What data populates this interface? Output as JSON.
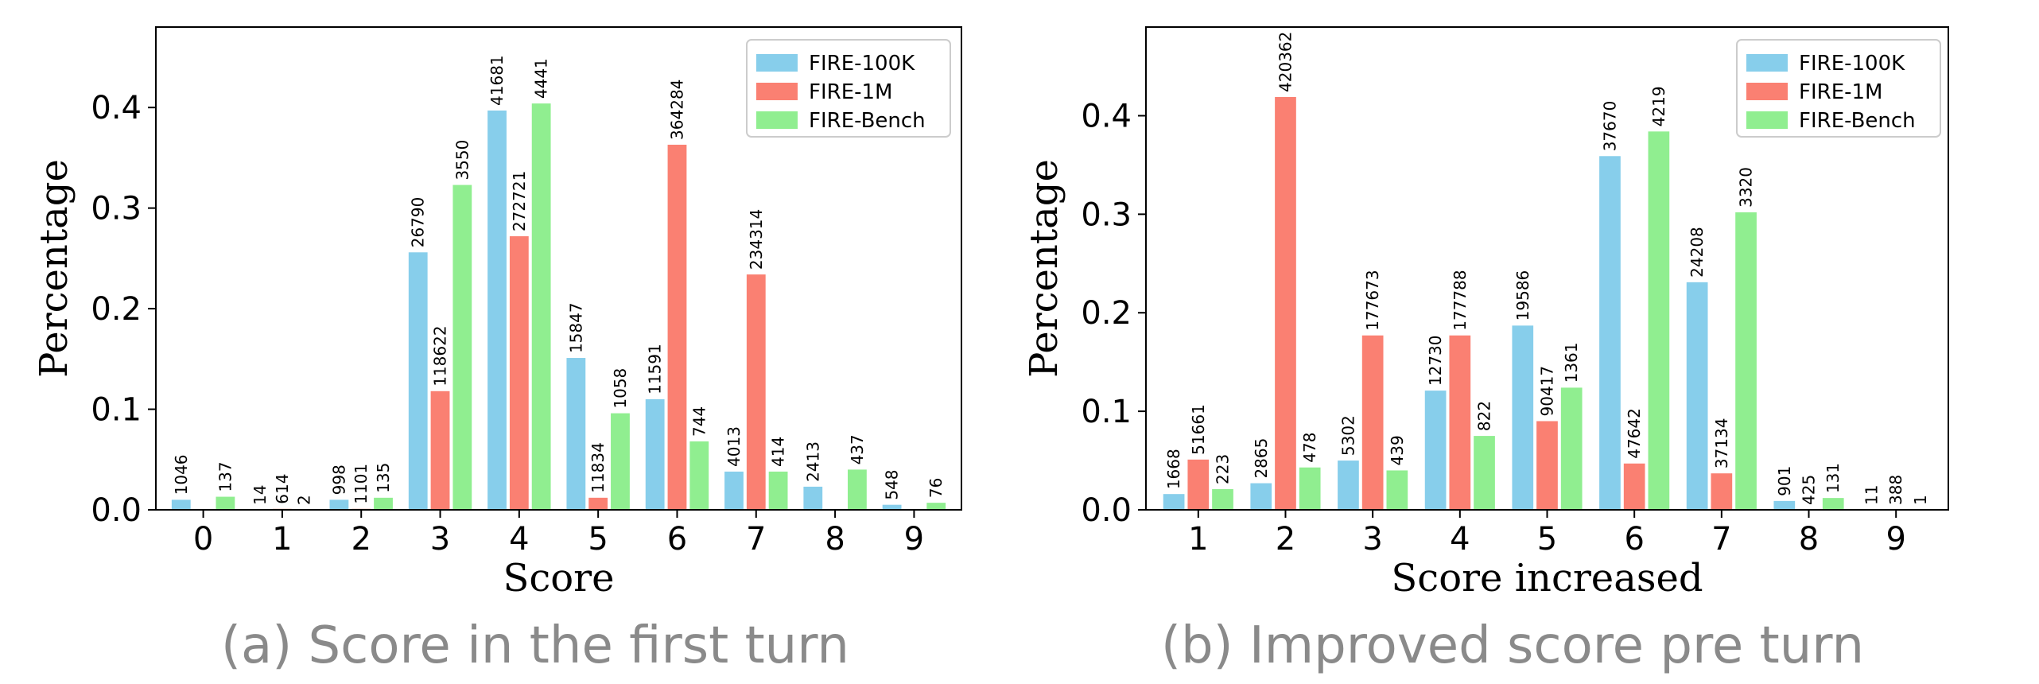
{
  "colors": {
    "FIRE-100K": "#87ceeb",
    "FIRE-1M": "#fa8072",
    "FIRE-Bench": "#90ee90"
  },
  "chart_data": [
    {
      "type": "bar",
      "caption": "(a) Score in the first turn",
      "xlabel": "Score",
      "ylabel": "Percentage",
      "categories": [
        "0",
        "1",
        "2",
        "3",
        "4",
        "5",
        "6",
        "7",
        "8",
        "9"
      ],
      "ylim": [
        0,
        0.48
      ],
      "yticks": [
        0.0,
        0.1,
        0.2,
        0.3,
        0.4
      ],
      "ytick_labels": [
        "0.0",
        "0.1",
        "0.2",
        "0.3",
        "0.4"
      ],
      "legend_position": "top-right",
      "series": [
        {
          "name": "FIRE-100K",
          "values": [
            0.01,
            0.0,
            0.01,
            0.256,
            0.397,
            0.151,
            0.11,
            0.038,
            0.023,
            0.005
          ],
          "labels": [
            "1046",
            "14",
            "998",
            "26790",
            "41681",
            "15847",
            "11591",
            "4013",
            "2413",
            "548"
          ]
        },
        {
          "name": "FIRE-1M",
          "values": [
            0.0,
            0.001,
            0.001,
            0.118,
            0.272,
            0.012,
            0.363,
            0.234,
            0.0,
            0.0
          ],
          "labels": [
            "",
            "614",
            "1101",
            "118622",
            "272721",
            "11834",
            "364284",
            "234314",
            "",
            ""
          ]
        },
        {
          "name": "FIRE-Bench",
          "values": [
            0.013,
            0.0,
            0.012,
            0.323,
            0.404,
            0.096,
            0.068,
            0.038,
            0.04,
            0.007
          ],
          "labels": [
            "137",
            "2",
            "135",
            "3550",
            "4441",
            "1058",
            "744",
            "414",
            "437",
            "76"
          ]
        }
      ]
    },
    {
      "type": "bar",
      "caption": "(b) Improved score pre turn",
      "xlabel": "Score increased",
      "ylabel": "Percentage",
      "categories": [
        "1",
        "2",
        "3",
        "4",
        "5",
        "6",
        "7",
        "8",
        "9"
      ],
      "ylim": [
        0,
        0.49
      ],
      "yticks": [
        0.0,
        0.1,
        0.2,
        0.3,
        0.4
      ],
      "ytick_labels": [
        "0.0",
        "0.1",
        "0.2",
        "0.3",
        "0.4"
      ],
      "legend_position": "top-right",
      "series": [
        {
          "name": "FIRE-100K",
          "values": [
            0.016,
            0.027,
            0.05,
            0.121,
            0.187,
            0.359,
            0.231,
            0.009,
            0.0
          ],
          "labels": [
            "1668",
            "2865",
            "5302",
            "12730",
            "19586",
            "37670",
            "24208",
            "901",
            "11"
          ]
        },
        {
          "name": "FIRE-1M",
          "values": [
            0.051,
            0.419,
            0.177,
            0.177,
            0.09,
            0.047,
            0.037,
            0.0,
            0.0
          ],
          "labels": [
            "51661",
            "420362",
            "177673",
            "177788",
            "90417",
            "47642",
            "37134",
            "425",
            "388"
          ]
        },
        {
          "name": "FIRE-Bench",
          "values": [
            0.021,
            0.043,
            0.04,
            0.075,
            0.124,
            0.384,
            0.302,
            0.012,
            0.0
          ],
          "labels": [
            "223",
            "478",
            "439",
            "822",
            "1361",
            "4219",
            "3320",
            "131",
            "1"
          ]
        }
      ]
    }
  ]
}
